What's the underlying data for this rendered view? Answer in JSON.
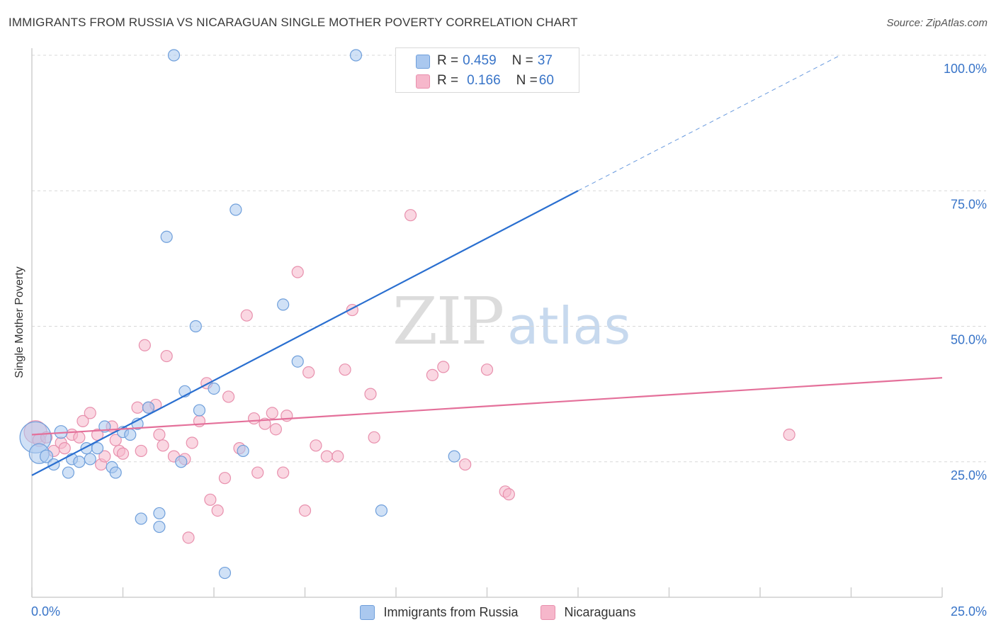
{
  "title": "IMMIGRANTS FROM RUSSIA VS NICARAGUAN SINGLE MOTHER POVERTY CORRELATION CHART",
  "source": "Source: ZipAtlas.com",
  "watermark": {
    "zip": "ZIP",
    "atlas": "atlas"
  },
  "legend_top": {
    "rows": [
      {
        "r_label": "R = ",
        "r_value": "0.459",
        "n_label": "N = ",
        "n_value": "37",
        "color": "#aac8ef"
      },
      {
        "r_label": "R = ",
        "r_value": "0.166",
        "n_label": "N = ",
        "n_value": "60",
        "color": "#f6b7cb"
      }
    ]
  },
  "bottom_legend": [
    {
      "label": "Immigrants from Russia",
      "color": "#aac8ef"
    },
    {
      "label": "Nicaraguans",
      "color": "#f6b7cb"
    }
  ],
  "colors": {
    "blue_fill": "#aac8ef",
    "blue_stroke": "#6f9fdb",
    "blue_line": "#2a6fd0",
    "pink_fill": "#f6b7cb",
    "pink_stroke": "#e890ad",
    "pink_line": "#e4709a",
    "tick_label": "#3874c8",
    "grid": "#d8d8d8",
    "axis": "#cfcfcf"
  },
  "chart_data": {
    "type": "scatter",
    "title": "IMMIGRANTS FROM RUSSIA VS NICARAGUAN SINGLE MOTHER POVERTY CORRELATION CHART",
    "xlabel": "",
    "ylabel": "Single Mother Poverty",
    "xlim": [
      0,
      25
    ],
    "ylim": [
      0,
      100
    ],
    "x_tick_labels": [
      {
        "value": 0,
        "label": "0.0%"
      },
      {
        "value": 25,
        "label": "25.0%"
      }
    ],
    "y_tick_labels": [
      {
        "value": 25,
        "label": "25.0%"
      },
      {
        "value": 50,
        "label": "50.0%"
      },
      {
        "value": 75,
        "label": "75.0%"
      },
      {
        "value": 100,
        "label": "100.0%"
      }
    ],
    "grid": true,
    "series": [
      {
        "name": "Immigrants from Russia",
        "R": 0.459,
        "N": 37,
        "trend": {
          "x0": 0,
          "y0": 22.5,
          "x1": 15,
          "y1": 75,
          "dash_to": {
            "x": 22.2,
            "y": 100
          }
        },
        "points": [
          [
            0.1,
            29.5,
            22
          ],
          [
            0.2,
            26.5,
            14
          ],
          [
            0.4,
            26,
            9
          ],
          [
            0.6,
            24.5,
            8
          ],
          [
            0.8,
            30.5,
            9
          ],
          [
            1.0,
            23,
            8
          ],
          [
            1.1,
            25.5,
            8
          ],
          [
            1.3,
            25,
            8
          ],
          [
            1.5,
            27.5,
            8
          ],
          [
            1.6,
            25.5,
            8
          ],
          [
            1.8,
            27.5,
            8
          ],
          [
            2.0,
            31.5,
            8
          ],
          [
            2.2,
            24,
            8
          ],
          [
            2.3,
            23,
            8
          ],
          [
            2.5,
            30.5,
            8
          ],
          [
            2.7,
            30,
            8
          ],
          [
            2.9,
            32,
            8
          ],
          [
            3.0,
            14.5,
            8
          ],
          [
            3.2,
            35,
            8
          ],
          [
            3.5,
            15.5,
            8
          ],
          [
            3.5,
            13,
            8
          ],
          [
            3.7,
            66.5,
            8
          ],
          [
            3.9,
            100,
            8
          ],
          [
            4.1,
            25,
            8
          ],
          [
            4.2,
            38,
            8
          ],
          [
            4.5,
            50,
            8
          ],
          [
            4.6,
            34.5,
            8
          ],
          [
            5.0,
            38.5,
            8
          ],
          [
            5.3,
            4.5,
            8
          ],
          [
            5.6,
            71.5,
            8
          ],
          [
            5.8,
            27,
            8
          ],
          [
            6.9,
            54,
            8
          ],
          [
            7.3,
            43.5,
            8
          ],
          [
            8.9,
            100,
            8
          ],
          [
            9.6,
            16,
            8
          ],
          [
            11.6,
            26,
            8
          ]
        ]
      },
      {
        "name": "Nicaraguans",
        "R": 0.166,
        "N": 60,
        "trend": {
          "x0": 0,
          "y0": 30,
          "x1": 25,
          "y1": 40.5
        },
        "points": [
          [
            0.1,
            30.5,
            16
          ],
          [
            0.2,
            29,
            9
          ],
          [
            0.4,
            29.5,
            8
          ],
          [
            0.6,
            27,
            8
          ],
          [
            0.8,
            28.5,
            8
          ],
          [
            0.9,
            27.5,
            8
          ],
          [
            1.1,
            30,
            8
          ],
          [
            1.3,
            29.5,
            8
          ],
          [
            1.4,
            32.5,
            8
          ],
          [
            1.6,
            34,
            8
          ],
          [
            1.8,
            30,
            8
          ],
          [
            1.9,
            24.5,
            8
          ],
          [
            2.0,
            26,
            8
          ],
          [
            2.2,
            31.5,
            8
          ],
          [
            2.3,
            29,
            8
          ],
          [
            2.4,
            27,
            8
          ],
          [
            2.5,
            26.5,
            8
          ],
          [
            2.9,
            35,
            8
          ],
          [
            3.0,
            27,
            8
          ],
          [
            3.1,
            46.5,
            8
          ],
          [
            3.2,
            35,
            8
          ],
          [
            3.4,
            35.5,
            8
          ],
          [
            3.5,
            30,
            8
          ],
          [
            3.6,
            28,
            8
          ],
          [
            3.7,
            44.5,
            8
          ],
          [
            3.9,
            26,
            8
          ],
          [
            4.2,
            25.5,
            8
          ],
          [
            4.3,
            11,
            8
          ],
          [
            4.4,
            28.5,
            8
          ],
          [
            4.6,
            32.5,
            8
          ],
          [
            4.8,
            39.5,
            8
          ],
          [
            4.9,
            18,
            8
          ],
          [
            5.1,
            16,
            8
          ],
          [
            5.3,
            22,
            8
          ],
          [
            5.4,
            37,
            8
          ],
          [
            5.7,
            27.5,
            8
          ],
          [
            5.9,
            52,
            8
          ],
          [
            6.1,
            33,
            8
          ],
          [
            6.2,
            23,
            8
          ],
          [
            6.4,
            32,
            8
          ],
          [
            6.6,
            34,
            8
          ],
          [
            6.7,
            31,
            8
          ],
          [
            6.9,
            23,
            8
          ],
          [
            7.0,
            33.5,
            8
          ],
          [
            7.3,
            60,
            8
          ],
          [
            7.5,
            16,
            8
          ],
          [
            7.6,
            41.5,
            8
          ],
          [
            7.8,
            28,
            8
          ],
          [
            8.1,
            26,
            8
          ],
          [
            8.4,
            26,
            8
          ],
          [
            8.6,
            42,
            8
          ],
          [
            8.8,
            53,
            8
          ],
          [
            9.3,
            37.5,
            8
          ],
          [
            9.4,
            29.5,
            8
          ],
          [
            10.4,
            70.5,
            8
          ],
          [
            11.0,
            41,
            8
          ],
          [
            11.3,
            42.5,
            8
          ],
          [
            11.9,
            24.5,
            8
          ],
          [
            12.5,
            42,
            8
          ],
          [
            13.0,
            19.5,
            8
          ],
          [
            13.1,
            19,
            8
          ],
          [
            20.8,
            30,
            8
          ]
        ]
      }
    ]
  }
}
